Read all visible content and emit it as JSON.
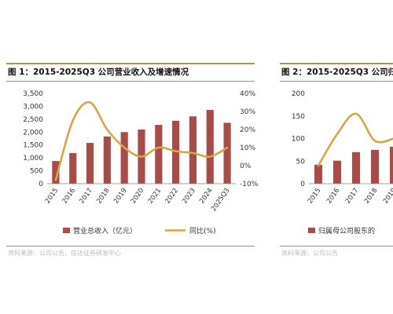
{
  "chart_data": [
    {
      "type": "bar",
      "title": "图 1：2015-2025Q3 公司营业收入及增速情况",
      "categories": [
        "2015",
        "2016",
        "2017",
        "2018",
        "2019",
        "2020",
        "2021",
        "2022",
        "2023",
        "2024",
        "2025Q3"
      ],
      "series": [
        {
          "name": "营业总收入（亿元）",
          "type": "bar",
          "axis": "left",
          "values": [
            880,
            1190,
            1580,
            1830,
            2000,
            2100,
            2280,
            2440,
            2610,
            2860,
            2360
          ],
          "color": "#a84c4a"
        },
        {
          "name": "同比(%)",
          "type": "line",
          "axis": "right",
          "values": [
            -8,
            25,
            35,
            20,
            10,
            5,
            10,
            8,
            7,
            5,
            10
          ],
          "color": "#d4a748"
        }
      ],
      "y_left": {
        "min": 0,
        "max": 3500,
        "ticks": [
          "0",
          "500",
          "1,000",
          "1,500",
          "2,000",
          "2,500",
          "3,000",
          "3,500"
        ]
      },
      "y_right": {
        "min": -10,
        "max": 40,
        "ticks": [
          "-10%",
          "0%",
          "10%",
          "20%",
          "30%",
          "40%"
        ]
      },
      "grid": false,
      "legend": "bottom"
    },
    {
      "type": "bar",
      "title": "图 2：2015-2025Q3 公司归",
      "categories": [
        "2015",
        "2016",
        "2017",
        "2018",
        "2019"
      ],
      "series": [
        {
          "name": "归属母公司股东的",
          "type": "bar",
          "axis": "left",
          "values": [
            42,
            51,
            70,
            75,
            82
          ],
          "color": "#a84c4a"
        },
        {
          "type": "line",
          "axis": "right",
          "values": [
            40,
            110,
            155,
            95,
            100
          ],
          "color": "#d4a748"
        }
      ],
      "y_left": {
        "min": 0,
        "max": 200,
        "ticks": [
          "0",
          "50",
          "100",
          "150",
          "200"
        ]
      },
      "grid": false,
      "legend": "bottom"
    }
  ],
  "source": {
    "left": "资料来源：公司公告，信达证券研发中心",
    "right": "资料来源：公司公告"
  }
}
